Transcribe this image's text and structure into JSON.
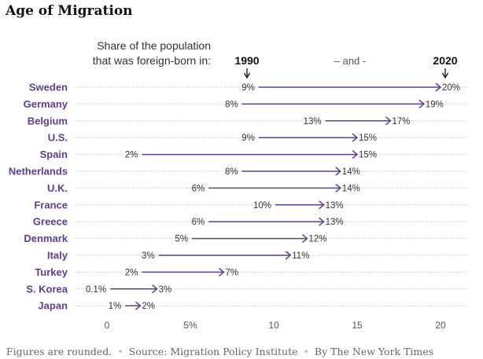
{
  "title": "Age of Migration",
  "colors": {
    "accent": "#5f3c95",
    "label": "#5f3c95",
    "grid": "#c4c4c4",
    "text": "#333333"
  },
  "legend": {
    "line1": "Share of the population",
    "line2": "that was foreign-born in:",
    "start_year": "1990",
    "middle": "– and -",
    "end_year": "2020"
  },
  "chart_data": {
    "type": "arrow",
    "title": "Age of Migration",
    "xlim": [
      0,
      22
    ],
    "xticks": [
      0,
      5,
      10,
      15,
      20
    ],
    "xtick_labels": [
      "0",
      "5%",
      "10",
      "15",
      "20"
    ],
    "rows": [
      {
        "country": "Sweden",
        "start": 9,
        "end": 20,
        "start_label": "9%",
        "end_label": "20%"
      },
      {
        "country": "Germany",
        "start": 8,
        "end": 19,
        "start_label": "8%",
        "end_label": "19%"
      },
      {
        "country": "Belgium",
        "start": 13,
        "end": 17,
        "start_label": "13%",
        "end_label": "17%"
      },
      {
        "country": "U.S.",
        "start": 9,
        "end": 15,
        "start_label": "9%",
        "end_label": "15%"
      },
      {
        "country": "Spain",
        "start": 2,
        "end": 15,
        "start_label": "2%",
        "end_label": "15%"
      },
      {
        "country": "Netherlands",
        "start": 8,
        "end": 14,
        "start_label": "8%",
        "end_label": "14%"
      },
      {
        "country": "U.K.",
        "start": 6,
        "end": 14,
        "start_label": "6%",
        "end_label": "14%"
      },
      {
        "country": "France",
        "start": 10,
        "end": 13,
        "start_label": "10%",
        "end_label": "13%"
      },
      {
        "country": "Greece",
        "start": 6,
        "end": 13,
        "start_label": "6%",
        "end_label": "13%"
      },
      {
        "country": "Denmark",
        "start": 5,
        "end": 12,
        "start_label": "5%",
        "end_label": "12%"
      },
      {
        "country": "Italy",
        "start": 3,
        "end": 11,
        "start_label": "3%",
        "end_label": "11%"
      },
      {
        "country": "Turkey",
        "start": 2,
        "end": 7,
        "start_label": "2%",
        "end_label": "7%"
      },
      {
        "country": "S. Korea",
        "start": 0.1,
        "end": 3,
        "start_label": "0.1%",
        "end_label": "3%"
      },
      {
        "country": "Japan",
        "start": 1,
        "end": 2,
        "start_label": "1%",
        "end_label": "2%"
      }
    ]
  },
  "footer": {
    "note": "Figures are rounded.",
    "source": "Source: Migration Policy Institute",
    "credit": "By The New York Times"
  }
}
